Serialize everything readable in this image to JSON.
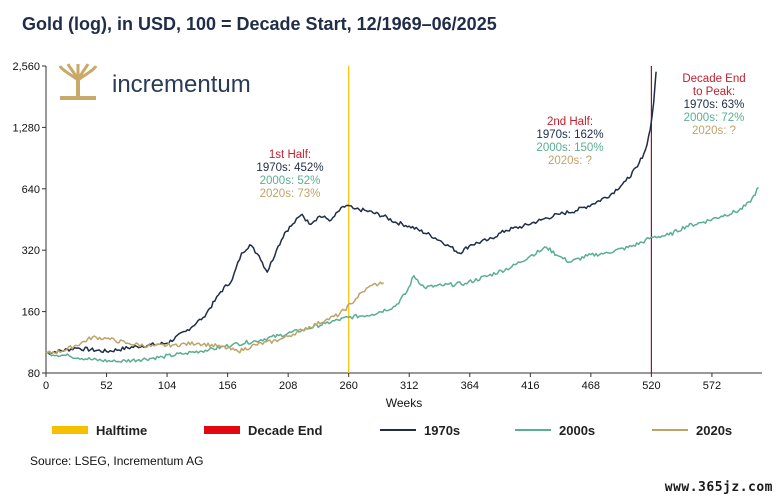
{
  "chart_data": {
    "type": "line",
    "title": "Gold (log), in USD, 100 = Decade Start, 12/1969–06/2025",
    "xlabel": "Weeks",
    "ylabel": "",
    "x_ticks": [
      0,
      52,
      104,
      156,
      208,
      260,
      312,
      364,
      416,
      468,
      520,
      572
    ],
    "y_ticks": [
      80,
      160,
      320,
      640,
      1280,
      2560
    ],
    "y_tick_labels": [
      "80",
      "160",
      "320",
      "640",
      "1,280",
      "2,560"
    ],
    "xlim": [
      0,
      615
    ],
    "ylim": [
      80,
      2560
    ],
    "yscale": "log",
    "grid": false,
    "legend_position": "bottom",
    "vlines": [
      {
        "name": "Halftime",
        "x": 260,
        "color": "#f5c000"
      },
      {
        "name": "Decade End",
        "x": 520,
        "color": "#8b1a2b"
      }
    ],
    "legend": [
      {
        "name": "Halftime",
        "color": "#f5c000",
        "kind": "bar"
      },
      {
        "name": "Decade End",
        "color": "#e30613",
        "kind": "bar"
      },
      {
        "name": "1970s",
        "color": "#1f2d48",
        "kind": "line"
      },
      {
        "name": "2000s",
        "color": "#5aae92",
        "kind": "line"
      },
      {
        "name": "2020s",
        "color": "#bfa46a",
        "kind": "line"
      }
    ],
    "series": [
      {
        "name": "1970s",
        "color": "#1f2d48",
        "points": [
          [
            0,
            100
          ],
          [
            26,
            106
          ],
          [
            52,
            102
          ],
          [
            78,
            108
          ],
          [
            104,
            112
          ],
          [
            120,
            128
          ],
          [
            135,
            150
          ],
          [
            145,
            180
          ],
          [
            150,
            200
          ],
          [
            160,
            230
          ],
          [
            168,
            310
          ],
          [
            175,
            340
          ],
          [
            183,
            300
          ],
          [
            190,
            250
          ],
          [
            198,
            320
          ],
          [
            205,
            390
          ],
          [
            212,
            430
          ],
          [
            220,
            480
          ],
          [
            226,
            430
          ],
          [
            235,
            470
          ],
          [
            245,
            450
          ],
          [
            252,
            500
          ],
          [
            258,
            530
          ],
          [
            265,
            510
          ],
          [
            275,
            500
          ],
          [
            290,
            470
          ],
          [
            300,
            440
          ],
          [
            312,
            420
          ],
          [
            330,
            380
          ],
          [
            345,
            340
          ],
          [
            355,
            310
          ],
          [
            365,
            340
          ],
          [
            380,
            360
          ],
          [
            395,
            400
          ],
          [
            410,
            420
          ],
          [
            425,
            450
          ],
          [
            440,
            480
          ],
          [
            455,
            500
          ],
          [
            470,
            540
          ],
          [
            485,
            600
          ],
          [
            498,
            700
          ],
          [
            508,
            820
          ],
          [
            515,
            1000
          ],
          [
            519,
            1250
          ],
          [
            522,
            1700
          ],
          [
            524,
            2400
          ]
        ]
      },
      {
        "name": "2000s",
        "color": "#5aae92",
        "points": [
          [
            0,
            100
          ],
          [
            20,
            97
          ],
          [
            40,
            93
          ],
          [
            60,
            91
          ],
          [
            80,
            93
          ],
          [
            100,
            96
          ],
          [
            120,
            100
          ],
          [
            140,
            104
          ],
          [
            160,
            110
          ],
          [
            180,
            115
          ],
          [
            200,
            122
          ],
          [
            220,
            130
          ],
          [
            240,
            140
          ],
          [
            260,
            150
          ],
          [
            280,
            155
          ],
          [
            300,
            170
          ],
          [
            310,
            200
          ],
          [
            316,
            240
          ],
          [
            325,
            210
          ],
          [
            340,
            215
          ],
          [
            360,
            220
          ],
          [
            380,
            240
          ],
          [
            400,
            265
          ],
          [
            416,
            300
          ],
          [
            430,
            330
          ],
          [
            440,
            300
          ],
          [
            450,
            280
          ],
          [
            465,
            300
          ],
          [
            480,
            310
          ],
          [
            500,
            330
          ],
          [
            512,
            350
          ],
          [
            520,
            370
          ],
          [
            535,
            380
          ],
          [
            550,
            420
          ],
          [
            565,
            440
          ],
          [
            580,
            470
          ],
          [
            595,
            500
          ],
          [
            605,
            550
          ],
          [
            612,
            650
          ]
        ]
      },
      {
        "name": "2020s",
        "color": "#bfa46a",
        "points": [
          [
            0,
            100
          ],
          [
            15,
            103
          ],
          [
            30,
            112
          ],
          [
            40,
            120
          ],
          [
            52,
            118
          ],
          [
            70,
            112
          ],
          [
            90,
            108
          ],
          [
            110,
            110
          ],
          [
            130,
            112
          ],
          [
            150,
            108
          ],
          [
            165,
            102
          ],
          [
            180,
            110
          ],
          [
            200,
            116
          ],
          [
            220,
            130
          ],
          [
            240,
            145
          ],
          [
            252,
            155
          ],
          [
            262,
            175
          ],
          [
            272,
            200
          ],
          [
            280,
            215
          ],
          [
            290,
            222
          ]
        ]
      }
    ],
    "annotations": [
      {
        "heading": "1st Half:",
        "heading_color": "#c0202e",
        "lines": [
          {
            "text": "1970s: 452%",
            "color": "#1f2d48"
          },
          {
            "text": "2000s: 52%",
            "color": "#5aae92"
          },
          {
            "text": "2020s: 73%",
            "color": "#bfa46a"
          }
        ]
      },
      {
        "heading": "2nd Half:",
        "heading_color": "#c0202e",
        "lines": [
          {
            "text": "1970s: 162%",
            "color": "#1f2d48"
          },
          {
            "text": "2000s: 150%",
            "color": "#5aae92"
          },
          {
            "text": "2020s: ?",
            "color": "#bfa46a"
          }
        ]
      },
      {
        "heading": "Decade End",
        "heading2": "to Peak:",
        "heading_color": "#c0202e",
        "lines": [
          {
            "text": "1970s: 63%",
            "color": "#1f2d48"
          },
          {
            "text": "2000s: 72%",
            "color": "#5aae92"
          },
          {
            "text": "2020s: ?",
            "color": "#bfa46a"
          }
        ]
      }
    ]
  },
  "brand": {
    "name": "incrementum",
    "logo_icon": "tree-logo-icon",
    "color": "#2b3a55",
    "logo_color": "#c9a96a"
  },
  "source": "Source: LSEG, Incrementum AG",
  "watermark": "www.365jz.com"
}
